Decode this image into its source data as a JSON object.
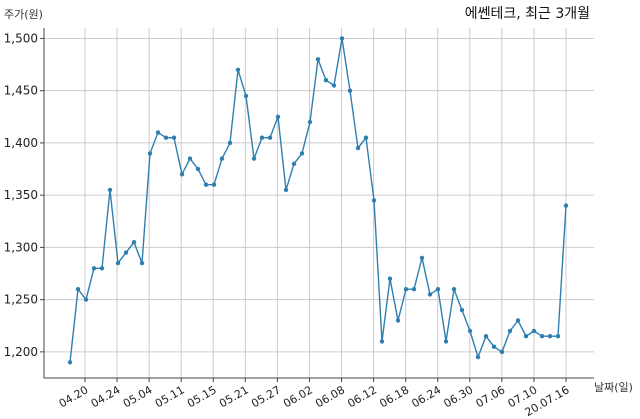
{
  "chart_data": {
    "type": "line",
    "title": "에쎈테크, 최근 3개월",
    "ylabel": "주가(원)",
    "xlabel": "날짜(일)",
    "ylim": [
      1175,
      1510
    ],
    "yticks": [
      1200,
      1250,
      1300,
      1350,
      1400,
      1450,
      1500
    ],
    "ytick_labels": [
      "1,200",
      "1,250",
      "1,300",
      "1,350",
      "1,400",
      "1,450",
      "1,500"
    ],
    "xtick_labels": [
      "04.20",
      "04.24",
      "05.04",
      "05.11",
      "05.15",
      "05.21",
      "05.27",
      "06.02",
      "06.08",
      "06.12",
      "06.18",
      "06.24",
      "06.30",
      "07.06",
      "07.10",
      "20.07.16"
    ],
    "grid": true,
    "colors": {
      "line": "#2e7fb0",
      "grid": "#cccccc"
    },
    "values": [
      1190,
      1260,
      1250,
      1280,
      1280,
      1355,
      1285,
      1295,
      1305,
      1285,
      1390,
      1410,
      1405,
      1405,
      1370,
      1385,
      1375,
      1360,
      1360,
      1385,
      1400,
      1470,
      1445,
      1385,
      1405,
      1405,
      1425,
      1355,
      1380,
      1390,
      1420,
      1480,
      1460,
      1455,
      1500,
      1450,
      1395,
      1405,
      1345,
      1210,
      1270,
      1230,
      1260,
      1260,
      1290,
      1255,
      1260,
      1210,
      1260,
      1240,
      1220,
      1195,
      1215,
      1205,
      1200,
      1220,
      1230,
      1215,
      1220,
      1215,
      1215,
      1215,
      1340
    ]
  }
}
